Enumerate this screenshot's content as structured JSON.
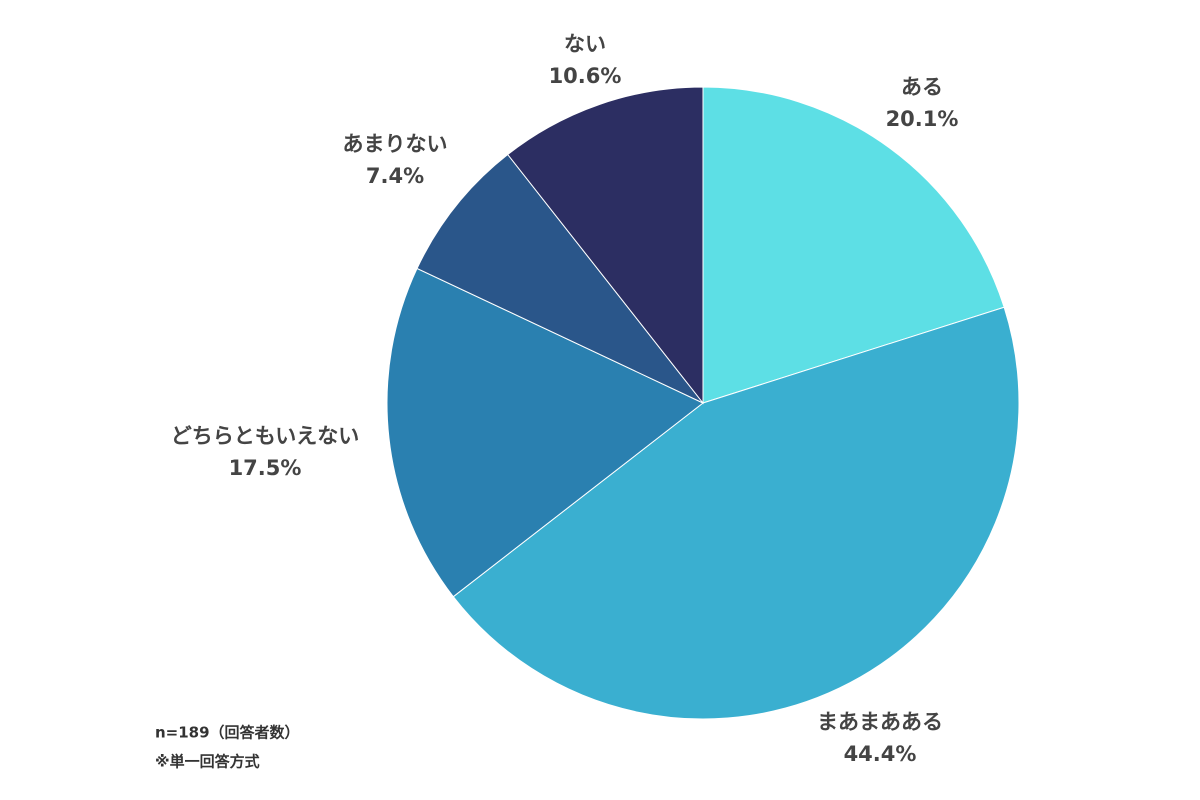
{
  "chart_data": {
    "type": "pie",
    "categories": [
      "ある",
      "まあまあある",
      "どちらともいえない",
      "あまりない",
      "ない"
    ],
    "values": [
      20.1,
      44.4,
      17.5,
      7.4,
      10.6
    ],
    "value_labels": [
      "20.1%",
      "44.4%",
      "17.5%",
      "7.4%",
      "10.6%"
    ],
    "colors": [
      "#5ddfe5",
      "#3aafd0",
      "#2a80b0",
      "#2a568a",
      "#2c2e62"
    ],
    "notes": [
      "n=189（回答者数）",
      "※単一回答方式"
    ]
  }
}
